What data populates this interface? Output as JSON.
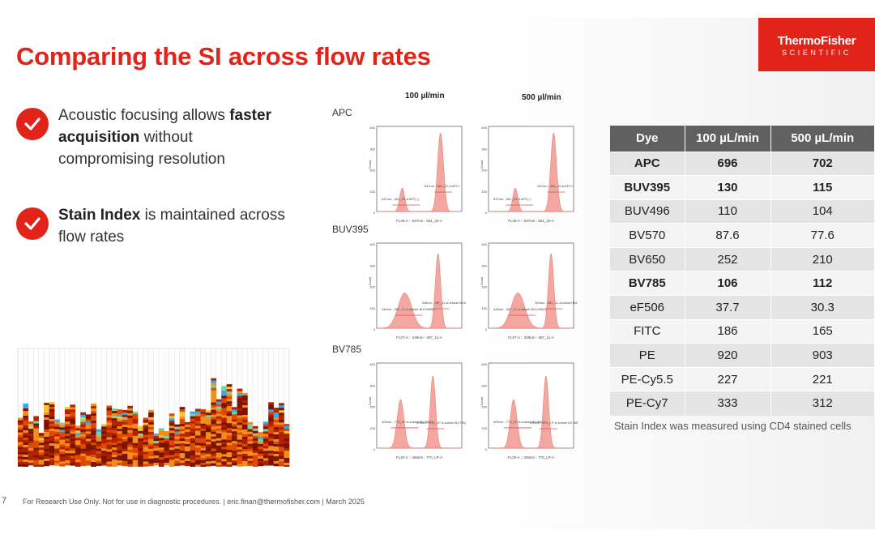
{
  "title": "Comparing the SI across flow rates",
  "logo": {
    "line1": "ThermoFisher",
    "line2": "SCIENTIFIC"
  },
  "bullets": [
    {
      "pre": "Acoustic focusing allows ",
      "bold": "faster acquisition",
      "post": " without compromising resolution"
    },
    {
      "pre": "",
      "bold": "Stain Index",
      "post": " is maintained across flow rates"
    }
  ],
  "histograms": {
    "columns": [
      "100 µl/min",
      "500 µl/min"
    ],
    "rows": [
      {
        "label": "APC",
        "yticks": [
          "400",
          "300",
          "200",
          "100",
          "0"
        ],
        "neg_label": "637nm - 661_20-A APC(-)",
        "pos_label": "637nm - 661_20-A APC+",
        "xaxis": "FL46-A :: 637nm - 661_20-A"
      },
      {
        "label": "BUV395",
        "yticks": [
          "400",
          "300",
          "200",
          "100",
          "0"
        ],
        "neg_label": "349nm - 387_11-A subset BUV395(-)",
        "pos_label": "349nm - 387_11-A subset BUV395+",
        "xaxis": "FL07-A :: 349nm - 387_11-A"
      },
      {
        "label": "BV785",
        "yticks": [
          "400",
          "300",
          "200",
          "100",
          "0"
        ],
        "neg_label": "405nm - 770_LP-A subset BV785(-)",
        "pos_label": "405nm - 770_LP-A subset BV785(+)",
        "xaxis": "FL20-A :: 405nm - 770_LP-A"
      }
    ],
    "ylabel": "Count"
  },
  "table": {
    "headers": [
      "Dye",
      "100 µL/min",
      "500 µL/min"
    ],
    "rows": [
      {
        "dye": "APC",
        "v100": "696",
        "v500": "702",
        "bold": true
      },
      {
        "dye": "BUV395",
        "v100": "130",
        "v500": "115",
        "bold": true
      },
      {
        "dye": "BUV496",
        "v100": "110",
        "v500": "104",
        "bold": false
      },
      {
        "dye": "BV570",
        "v100": "87.6",
        "v500": "77.6",
        "bold": false
      },
      {
        "dye": "BV650",
        "v100": "252",
        "v500": "210",
        "bold": false
      },
      {
        "dye": "BV785",
        "v100": "106",
        "v500": "112",
        "bold": true
      },
      {
        "dye": "eF506",
        "v100": "37.7",
        "v500": "30.3",
        "bold": false
      },
      {
        "dye": "FITC",
        "v100": "186",
        "v500": "165",
        "bold": false
      },
      {
        "dye": "PE",
        "v100": "920",
        "v500": "903",
        "bold": false
      },
      {
        "dye": "PE-Cy5.5",
        "v100": "227",
        "v500": "221",
        "bold": false
      },
      {
        "dye": "PE-Cy7",
        "v100": "333",
        "v500": "312",
        "bold": false
      }
    ]
  },
  "footnote": "Stain Index was measured using CD4 stained cells",
  "page_number": "7",
  "footer": "For Research Use Only. Not for use in diagnostic procedures. | eric.finan@thermofisher.com | March 2025",
  "colors": {
    "brand_red": "#e2231a",
    "table_header": "#606060",
    "histogram_fill": "#f4a6a0"
  }
}
